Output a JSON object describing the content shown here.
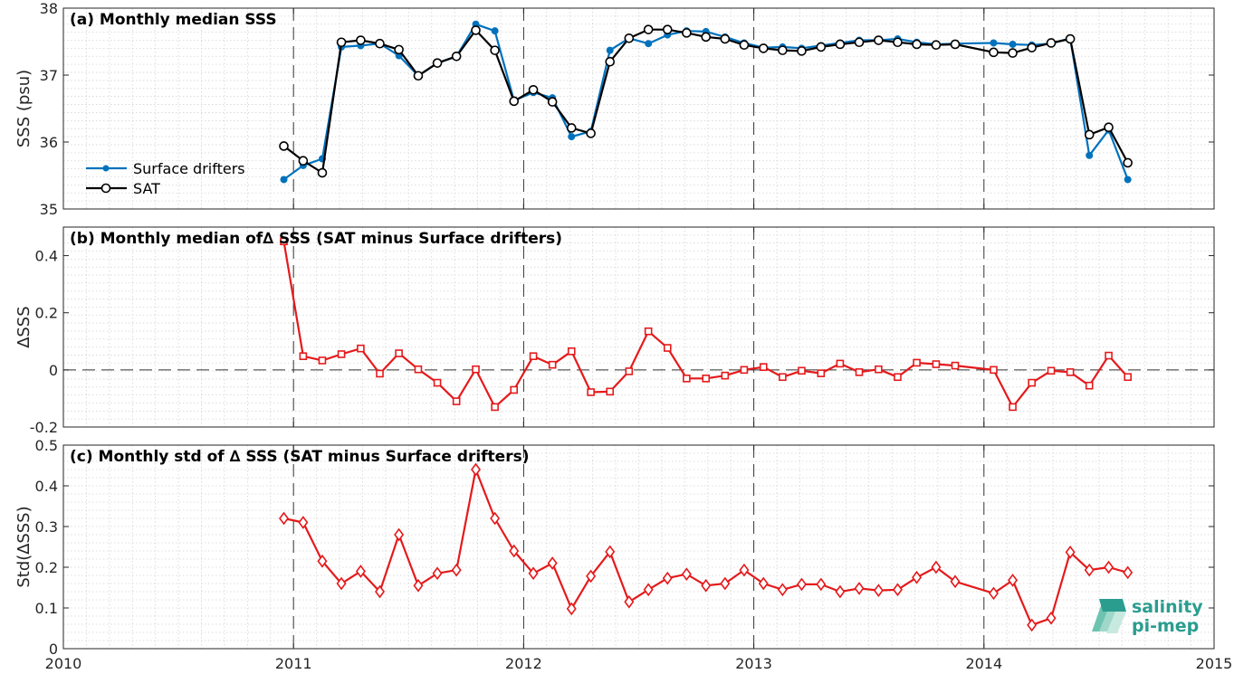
{
  "chart_data": [
    {
      "type": "line",
      "title": "(a) Monthly median SSS",
      "ylabel": "SSS (psu)",
      "xlim": [
        2010,
        2015
      ],
      "ylim": [
        35,
        38
      ],
      "yticks": [
        "35",
        "36",
        "37",
        "38"
      ],
      "grid": "minor dotted",
      "legend_position": "lower-left",
      "series": [
        {
          "name": "Surface drifters",
          "color": "#0072BD",
          "marker": "dot",
          "x": [
            2010.958,
            2011.042,
            2011.125,
            2011.208,
            2011.292,
            2011.375,
            2011.458,
            2011.542,
            2011.625,
            2011.708,
            2011.792,
            2011.875,
            2011.958,
            2012.042,
            2012.125,
            2012.208,
            2012.292,
            2012.375,
            2012.458,
            2012.542,
            2012.625,
            2012.708,
            2012.792,
            2012.875,
            2012.958,
            2013.042,
            2013.125,
            2013.208,
            2013.292,
            2013.375,
            2013.458,
            2013.542,
            2013.625,
            2013.708,
            2013.792,
            2013.875,
            2014.042,
            2014.125,
            2014.208,
            2014.292,
            2014.375,
            2014.458,
            2014.542,
            2014.625
          ],
          "y": [
            35.44,
            35.65,
            35.75,
            37.42,
            37.44,
            37.47,
            37.29,
            36.99,
            37.18,
            37.28,
            37.76,
            37.66,
            36.62,
            36.74,
            36.66,
            36.08,
            36.16,
            37.37,
            37.55,
            37.47,
            37.6,
            37.66,
            37.65,
            37.57,
            37.48,
            37.41,
            37.42,
            37.4,
            37.44,
            37.48,
            37.52,
            37.52,
            37.54,
            37.49,
            37.46,
            37.47,
            37.48,
            37.46,
            37.45,
            37.47,
            37.55,
            35.8,
            36.18,
            35.44
          ]
        },
        {
          "name": "SAT",
          "color": "#000000",
          "marker": "circle",
          "x": [
            2010.958,
            2011.042,
            2011.125,
            2011.208,
            2011.292,
            2011.375,
            2011.458,
            2011.542,
            2011.625,
            2011.708,
            2011.792,
            2011.875,
            2011.958,
            2012.042,
            2012.125,
            2012.208,
            2012.292,
            2012.375,
            2012.458,
            2012.542,
            2012.625,
            2012.708,
            2012.792,
            2012.875,
            2012.958,
            2013.042,
            2013.125,
            2013.208,
            2013.292,
            2013.375,
            2013.458,
            2013.542,
            2013.625,
            2013.708,
            2013.792,
            2013.875,
            2014.042,
            2014.125,
            2014.208,
            2014.292,
            2014.375,
            2014.458,
            2014.542,
            2014.625
          ],
          "y": [
            35.94,
            35.72,
            35.54,
            37.49,
            37.52,
            37.47,
            37.38,
            36.99,
            37.18,
            37.28,
            37.67,
            37.37,
            36.61,
            36.78,
            36.6,
            36.21,
            36.13,
            37.2,
            37.55,
            37.68,
            37.68,
            37.63,
            37.57,
            37.54,
            37.45,
            37.4,
            37.37,
            37.36,
            37.42,
            37.46,
            37.49,
            37.52,
            37.49,
            37.46,
            37.45,
            37.46,
            37.34,
            37.33,
            37.41,
            37.48,
            37.54,
            36.11,
            36.22,
            35.69
          ]
        }
      ]
    },
    {
      "type": "line",
      "title": "(b) Monthly median of∆ SSS (SAT minus Surface drifters)",
      "ylabel": "∆SSS",
      "xlim": [
        2010,
        2015
      ],
      "ylim": [
        -0.2,
        0.5
      ],
      "yticks": [
        "-0.2",
        "0",
        "0.2",
        "0.4"
      ],
      "zero_line": "dashed",
      "series": [
        {
          "color": "#E41A1C",
          "marker": "square",
          "x": [
            2010.958,
            2011.042,
            2011.125,
            2011.208,
            2011.292,
            2011.375,
            2011.458,
            2011.542,
            2011.625,
            2011.708,
            2011.792,
            2011.875,
            2011.958,
            2012.042,
            2012.125,
            2012.208,
            2012.292,
            2012.375,
            2012.458,
            2012.542,
            2012.625,
            2012.708,
            2012.792,
            2012.875,
            2012.958,
            2013.042,
            2013.125,
            2013.208,
            2013.292,
            2013.375,
            2013.458,
            2013.542,
            2013.625,
            2013.708,
            2013.792,
            2013.875,
            2014.042,
            2014.125,
            2014.208,
            2014.292,
            2014.375,
            2014.458,
            2014.542,
            2014.625
          ],
          "y": [
            0.45,
            0.048,
            0.033,
            0.055,
            0.075,
            -0.013,
            0.058,
            0.002,
            -0.045,
            -0.11,
            0.002,
            -0.13,
            -0.07,
            0.048,
            0.018,
            0.065,
            -0.078,
            -0.076,
            -0.005,
            0.135,
            0.077,
            -0.03,
            -0.03,
            -0.02,
            0.0,
            0.01,
            -0.025,
            -0.003,
            -0.012,
            0.022,
            -0.008,
            0.002,
            -0.025,
            0.025,
            0.02,
            0.015,
            0.0,
            -0.13,
            -0.045,
            -0.003,
            -0.008,
            -0.055,
            0.05,
            -0.025
          ]
        }
      ]
    },
    {
      "type": "line",
      "title": "(c) Monthly std of ∆ SSS (SAT minus Surface drifters)",
      "ylabel": "Std(∆SSS)",
      "xlabel": "",
      "xlim": [
        2010,
        2015
      ],
      "ylim": [
        0,
        0.5
      ],
      "yticks": [
        "0",
        "0.1",
        "0.2",
        "0.3",
        "0.4",
        "0.5"
      ],
      "xticks": [
        "2010",
        "2011",
        "2012",
        "2013",
        "2014",
        "2015"
      ],
      "series": [
        {
          "color": "#E41A1C",
          "marker": "diamond",
          "x": [
            2010.958,
            2011.042,
            2011.125,
            2011.208,
            2011.292,
            2011.375,
            2011.458,
            2011.542,
            2011.625,
            2011.708,
            2011.792,
            2011.875,
            2011.958,
            2012.042,
            2012.125,
            2012.208,
            2012.292,
            2012.375,
            2012.458,
            2012.542,
            2012.625,
            2012.708,
            2012.792,
            2012.875,
            2012.958,
            2013.042,
            2013.125,
            2013.208,
            2013.292,
            2013.375,
            2013.458,
            2013.542,
            2013.625,
            2013.708,
            2013.792,
            2013.875,
            2014.042,
            2014.125,
            2014.208,
            2014.292,
            2014.375,
            2014.458,
            2014.542,
            2014.625
          ],
          "y": [
            0.32,
            0.31,
            0.215,
            0.16,
            0.19,
            0.14,
            0.28,
            0.155,
            0.185,
            0.193,
            0.44,
            0.32,
            0.24,
            0.185,
            0.21,
            0.098,
            0.178,
            0.238,
            0.115,
            0.145,
            0.173,
            0.183,
            0.155,
            0.16,
            0.193,
            0.16,
            0.145,
            0.158,
            0.158,
            0.14,
            0.148,
            0.143,
            0.145,
            0.175,
            0.2,
            0.165,
            0.136,
            0.168,
            0.058,
            0.075,
            0.237,
            0.193,
            0.2,
            0.187
          ]
        }
      ]
    }
  ],
  "logo": {
    "line1": "salinity",
    "line2": "pi-mep"
  }
}
